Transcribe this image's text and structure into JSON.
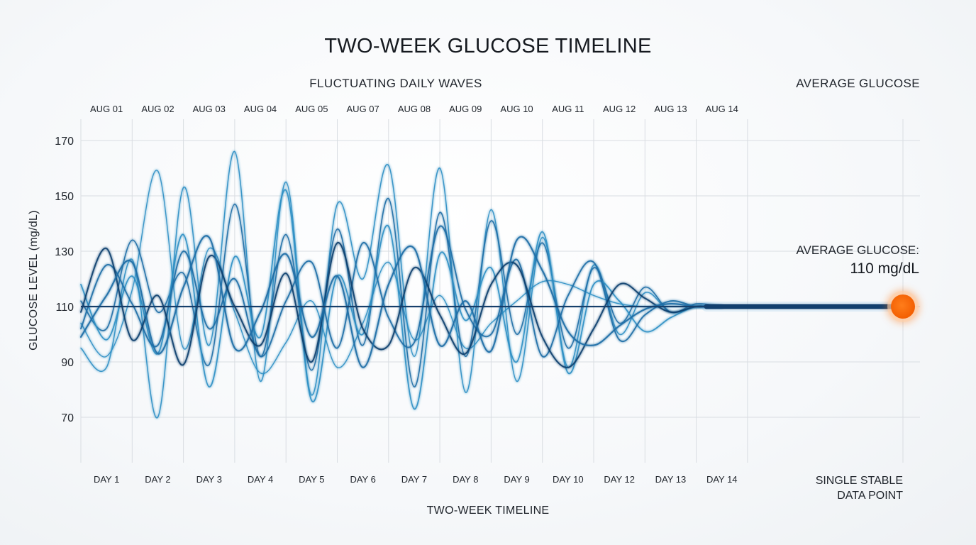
{
  "chart_data": {
    "type": "line",
    "title": "TWO-WEEK GLUCOSE TIMELINE",
    "subtitle_left": "FLUCTUATING DAILY WAVES",
    "subtitle_right": "AVERAGE GLUCOSE",
    "ylabel": "GLUCOSE LEVEL (mg/dL)",
    "xlabel": "TWO-WEEK TIMELINE",
    "ylim": [
      58,
      178
    ],
    "yticks": [
      70,
      90,
      110,
      130,
      150,
      170
    ],
    "top_ticks": [
      "AUG 01",
      "AUG 02",
      "AUG 03",
      "AUG 04",
      "AUG 05",
      "AUG 07",
      "AUG 08",
      "AUG 09",
      "AUG 10",
      "AUG 11",
      "AUG 12",
      "AUG 13",
      "AUG 14"
    ],
    "bottom_ticks": [
      "DAY 1",
      "DAY 2",
      "DAY 3",
      "DAY 4",
      "DAY 5",
      "DAY 6",
      "DAY 7",
      "DAY 8",
      "DAY 9",
      "DAY 10",
      "DAY 12",
      "DAY 13",
      "DAY 14"
    ],
    "average": {
      "label": "AVERAGE GLUCOSE:",
      "value": 110,
      "value_text": "110 mg/dL"
    },
    "endpoint_label": [
      "SINGLE STABLE",
      "DATA POINT"
    ],
    "grid": true,
    "colors": {
      "wave_light": "#2e8fc4",
      "wave_mid": "#1e6ea6",
      "wave_dark": "#123f6e",
      "baseline": "#163f6b",
      "endpoint": "#ff6a00"
    },
    "series": [
      {
        "values": [
          104,
          92,
          116,
          159,
          95,
          131,
          108,
          86,
          97,
          112,
          88,
          104,
          126,
          98,
          114,
          95,
          104,
          112,
          119,
          118,
          114,
          111,
          110,
          110,
          110,
          110
        ]
      },
      {
        "values": [
          95,
          88,
          127,
          70,
          153,
          96,
          166,
          83,
          155,
          78,
          147,
          120,
          161,
          92,
          160,
          79,
          145,
          83,
          135,
          88,
          125,
          100,
          115,
          108,
          110,
          110
        ]
      },
      {
        "values": [
          112,
          102,
          134,
          108,
          122,
          89,
          147,
          92,
          136,
          87,
          138,
          96,
          149,
          81,
          144,
          92,
          141,
          100,
          133,
          95,
          124,
          104,
          117,
          108,
          111,
          110
        ]
      },
      {
        "values": [
          118,
          98,
          121,
          93,
          136,
          81,
          128,
          99,
          152,
          76,
          121,
          100,
          139,
          73,
          129,
          105,
          124,
          90,
          137,
          86,
          118,
          112,
          101,
          106,
          110,
          110
        ]
      },
      {
        "values": [
          102,
          125,
          111,
          96,
          130,
          102,
          120,
          92,
          112,
          126,
          95,
          133,
          106,
          97,
          139,
          109,
          100,
          127,
          92,
          114,
          126,
          98,
          107,
          112,
          110,
          110
        ]
      },
      {
        "values": [
          108,
          131,
          98,
          114,
          89,
          128,
          110,
          96,
          122,
          90,
          133,
          102,
          96,
          124,
          107,
          93,
          118,
          125,
          99,
          88,
          102,
          118,
          113,
          108,
          110,
          110
        ]
      },
      {
        "values": [
          99,
          114,
          126,
          93,
          117,
          135,
          95,
          108,
          129,
          99,
          121,
          88,
          118,
          131,
          96,
          112,
          94,
          134,
          123,
          101,
          96,
          103,
          109,
          111,
          110,
          110
        ]
      }
    ]
  }
}
